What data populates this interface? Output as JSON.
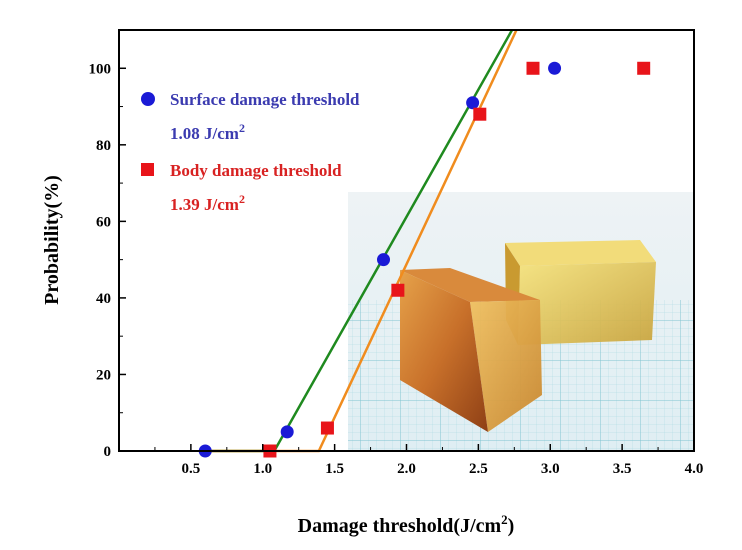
{
  "chart_data": {
    "type": "scatter",
    "xlabel": "Damage threshold",
    "xunit": "(J/cm",
    "xunit_sup": "2",
    "xunit_close": ")",
    "ylabel": "Probability(%)",
    "xlim": [
      0.0,
      4.0
    ],
    "ylim": [
      0,
      110
    ],
    "xticks": [
      0.5,
      1.0,
      1.5,
      2.0,
      2.5,
      3.0,
      3.5,
      4.0
    ],
    "xtick_labels": [
      "0.5",
      "1.0",
      "1.5",
      "2.0",
      "2.5",
      "3.0",
      "3.5",
      "4.0"
    ],
    "yticks": [
      0,
      20,
      40,
      60,
      80,
      100
    ],
    "ytick_labels": [
      "0",
      "20",
      "40",
      "60",
      "80",
      "100"
    ],
    "series": [
      {
        "name": "Surface damage threshold",
        "value_label": "1.08 J/cm",
        "value_label_sup": "2",
        "marker": "circle",
        "color": "#1a1ad6",
        "fit_color": "#1f8a1f",
        "points": [
          [
            0.6,
            0
          ],
          [
            1.17,
            5
          ],
          [
            1.84,
            50
          ],
          [
            2.46,
            91
          ],
          [
            3.03,
            100
          ]
        ],
        "fit": {
          "x_at_0": 1.08,
          "slope": 66.5
        }
      },
      {
        "name": "Body damage threshold",
        "value_label": "1.39 J/cm",
        "value_label_sup": "2",
        "marker": "square",
        "color": "#e8141a",
        "fit_color": "#f08c1e",
        "points": [
          [
            1.05,
            0
          ],
          [
            1.45,
            6
          ],
          [
            1.94,
            42
          ],
          [
            2.51,
            88
          ],
          [
            2.88,
            100
          ],
          [
            3.65,
            100
          ]
        ],
        "fit": {
          "x_at_0": 1.39,
          "slope": 80.0
        }
      }
    ],
    "legend_position": "top-left",
    "inset_photo": "two amber rectangular crystal samples on graph paper",
    "grid": false
  }
}
